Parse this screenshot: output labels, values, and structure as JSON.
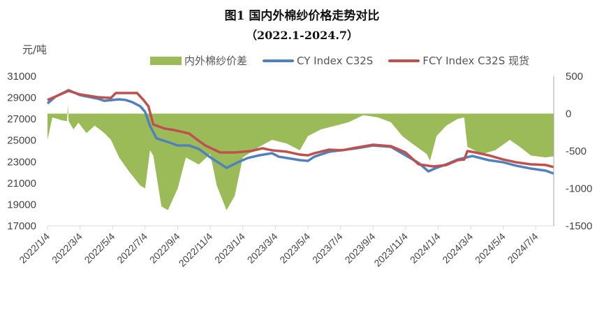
{
  "chart_data": {
    "type": "line",
    "title": "图1  国内外棉纱价格走势对比",
    "subtitle": "（2022.1-2024.7）",
    "ylabel": "元/吨",
    "ylim": [
      17000,
      31000
    ],
    "y2lim": [
      -1500,
      500
    ],
    "yticks": [
      "31000",
      "29000",
      "27000",
      "25000",
      "23000",
      "21000",
      "19000",
      "17000"
    ],
    "y2ticks": [
      "500",
      "0",
      "-500",
      "-1000",
      "-1500"
    ],
    "xticks": [
      "2022/1/4",
      "2022/3/4",
      "2022/5/4",
      "2022/7/4",
      "2022/9/4",
      "2022/11/4",
      "2023/1/4",
      "2023/3/4",
      "2023/5/4",
      "2023/7/4",
      "2023/9/4",
      "2023/11/4",
      "2024/1/4",
      "2024/3/4",
      "2024/5/4",
      "2024/7/4"
    ],
    "x_unit": "months since 2022/1/4",
    "xlim": [
      0,
      31.1
    ],
    "legend_position": "top",
    "colors": {
      "spread": "#9bbb59",
      "cy": "#4f81bd",
      "fcy": "#c0504d"
    },
    "series": [
      {
        "name": "内外棉纱价差",
        "axis": "right",
        "kind": "area",
        "points": [
          [
            0,
            -350
          ],
          [
            0.3,
            -50
          ],
          [
            0.9,
            -90
          ],
          [
            1.2,
            -100
          ],
          [
            1.25,
            120
          ],
          [
            1.3,
            -100
          ],
          [
            1.6,
            -210
          ],
          [
            1.9,
            -120
          ],
          [
            2.4,
            -260
          ],
          [
            2.9,
            -160
          ],
          [
            3.5,
            -260
          ],
          [
            3.9,
            -350
          ],
          [
            4.4,
            -585
          ],
          [
            5.0,
            -770
          ],
          [
            5.7,
            -960
          ],
          [
            6.0,
            -1000
          ],
          [
            6.3,
            -490
          ],
          [
            6.5,
            -560
          ],
          [
            7.0,
            -1240
          ],
          [
            7.4,
            -1290
          ],
          [
            8.0,
            -1000
          ],
          [
            8.5,
            -585
          ],
          [
            9.3,
            -680
          ],
          [
            10.0,
            -540
          ],
          [
            10.4,
            -960
          ],
          [
            11.0,
            -1290
          ],
          [
            11.5,
            -1100
          ],
          [
            12.0,
            -585
          ],
          [
            13.0,
            -445
          ],
          [
            13.8,
            -350
          ],
          [
            14.7,
            -400
          ],
          [
            15.5,
            -490
          ],
          [
            16.0,
            -300
          ],
          [
            16.8,
            -210
          ],
          [
            17.7,
            -160
          ],
          [
            18.5,
            -115
          ],
          [
            19.4,
            -20
          ],
          [
            20.3,
            -50
          ],
          [
            21.1,
            -115
          ],
          [
            21.8,
            -300
          ],
          [
            22.4,
            -400
          ],
          [
            23.3,
            -540
          ],
          [
            23.5,
            -630
          ],
          [
            23.9,
            -300
          ],
          [
            24.5,
            -160
          ],
          [
            25.2,
            -70
          ],
          [
            25.6,
            -50
          ],
          [
            25.8,
            -445
          ],
          [
            26.7,
            -540
          ],
          [
            27.5,
            -490
          ],
          [
            28.4,
            -350
          ],
          [
            29.0,
            -440
          ],
          [
            29.7,
            -560
          ],
          [
            30.6,
            -585
          ],
          [
            31.1,
            -570
          ]
        ]
      },
      {
        "name": "CY Index C32S",
        "axis": "left",
        "kind": "line",
        "points": [
          [
            0,
            28450
          ],
          [
            0.5,
            29100
          ],
          [
            1.3,
            29700
          ],
          [
            2.0,
            29230
          ],
          [
            3.1,
            28900
          ],
          [
            3.5,
            28700
          ],
          [
            4.4,
            28840
          ],
          [
            4.8,
            28780
          ],
          [
            5.2,
            28580
          ],
          [
            5.7,
            28190
          ],
          [
            6.0,
            27660
          ],
          [
            6.3,
            26350
          ],
          [
            6.7,
            25180
          ],
          [
            7.4,
            24850
          ],
          [
            8.0,
            24520
          ],
          [
            8.7,
            24520
          ],
          [
            9.3,
            24200
          ],
          [
            10.0,
            23410
          ],
          [
            11.0,
            22430
          ],
          [
            11.7,
            22950
          ],
          [
            12.3,
            23350
          ],
          [
            13.0,
            23600
          ],
          [
            13.8,
            23800
          ],
          [
            14.2,
            23480
          ],
          [
            15.5,
            23150
          ],
          [
            16.0,
            23080
          ],
          [
            16.4,
            23480
          ],
          [
            17.3,
            23930
          ],
          [
            19.0,
            24260
          ],
          [
            20.0,
            24520
          ],
          [
            21.1,
            24390
          ],
          [
            22.0,
            23600
          ],
          [
            22.8,
            22890
          ],
          [
            23.4,
            22100
          ],
          [
            23.9,
            22430
          ],
          [
            24.5,
            22760
          ],
          [
            25.2,
            23210
          ],
          [
            26.1,
            23540
          ],
          [
            27.1,
            23150
          ],
          [
            28.0,
            22950
          ],
          [
            28.8,
            22630
          ],
          [
            29.7,
            22360
          ],
          [
            30.6,
            22170
          ],
          [
            31.1,
            21900
          ]
        ]
      },
      {
        "name": "FCY Index C32S 现货",
        "axis": "left",
        "kind": "line",
        "points": [
          [
            0,
            28780
          ],
          [
            1.3,
            29630
          ],
          [
            2.0,
            29300
          ],
          [
            3.1,
            29040
          ],
          [
            3.9,
            28970
          ],
          [
            4.2,
            29430
          ],
          [
            5.5,
            29430
          ],
          [
            5.9,
            28780
          ],
          [
            6.2,
            28190
          ],
          [
            6.5,
            26490
          ],
          [
            7.2,
            26100
          ],
          [
            7.8,
            25960
          ],
          [
            8.7,
            25640
          ],
          [
            9.1,
            25180
          ],
          [
            9.7,
            24520
          ],
          [
            10.6,
            23870
          ],
          [
            11.5,
            23870
          ],
          [
            12.5,
            24000
          ],
          [
            13.2,
            24260
          ],
          [
            13.8,
            24070
          ],
          [
            14.7,
            23940
          ],
          [
            15.5,
            23670
          ],
          [
            16.0,
            23600
          ],
          [
            16.4,
            23800
          ],
          [
            17.3,
            24130
          ],
          [
            18.1,
            24070
          ],
          [
            19.0,
            24330
          ],
          [
            20.0,
            24590
          ],
          [
            21.1,
            24460
          ],
          [
            22.0,
            23870
          ],
          [
            22.8,
            22760
          ],
          [
            23.7,
            22560
          ],
          [
            24.5,
            22690
          ],
          [
            25.2,
            23150
          ],
          [
            25.6,
            23210
          ],
          [
            25.8,
            24000
          ],
          [
            26.3,
            23870
          ],
          [
            27.1,
            23600
          ],
          [
            28.0,
            23210
          ],
          [
            28.8,
            22950
          ],
          [
            29.7,
            22760
          ],
          [
            30.6,
            22700
          ],
          [
            31.1,
            22500
          ]
        ]
      }
    ]
  }
}
